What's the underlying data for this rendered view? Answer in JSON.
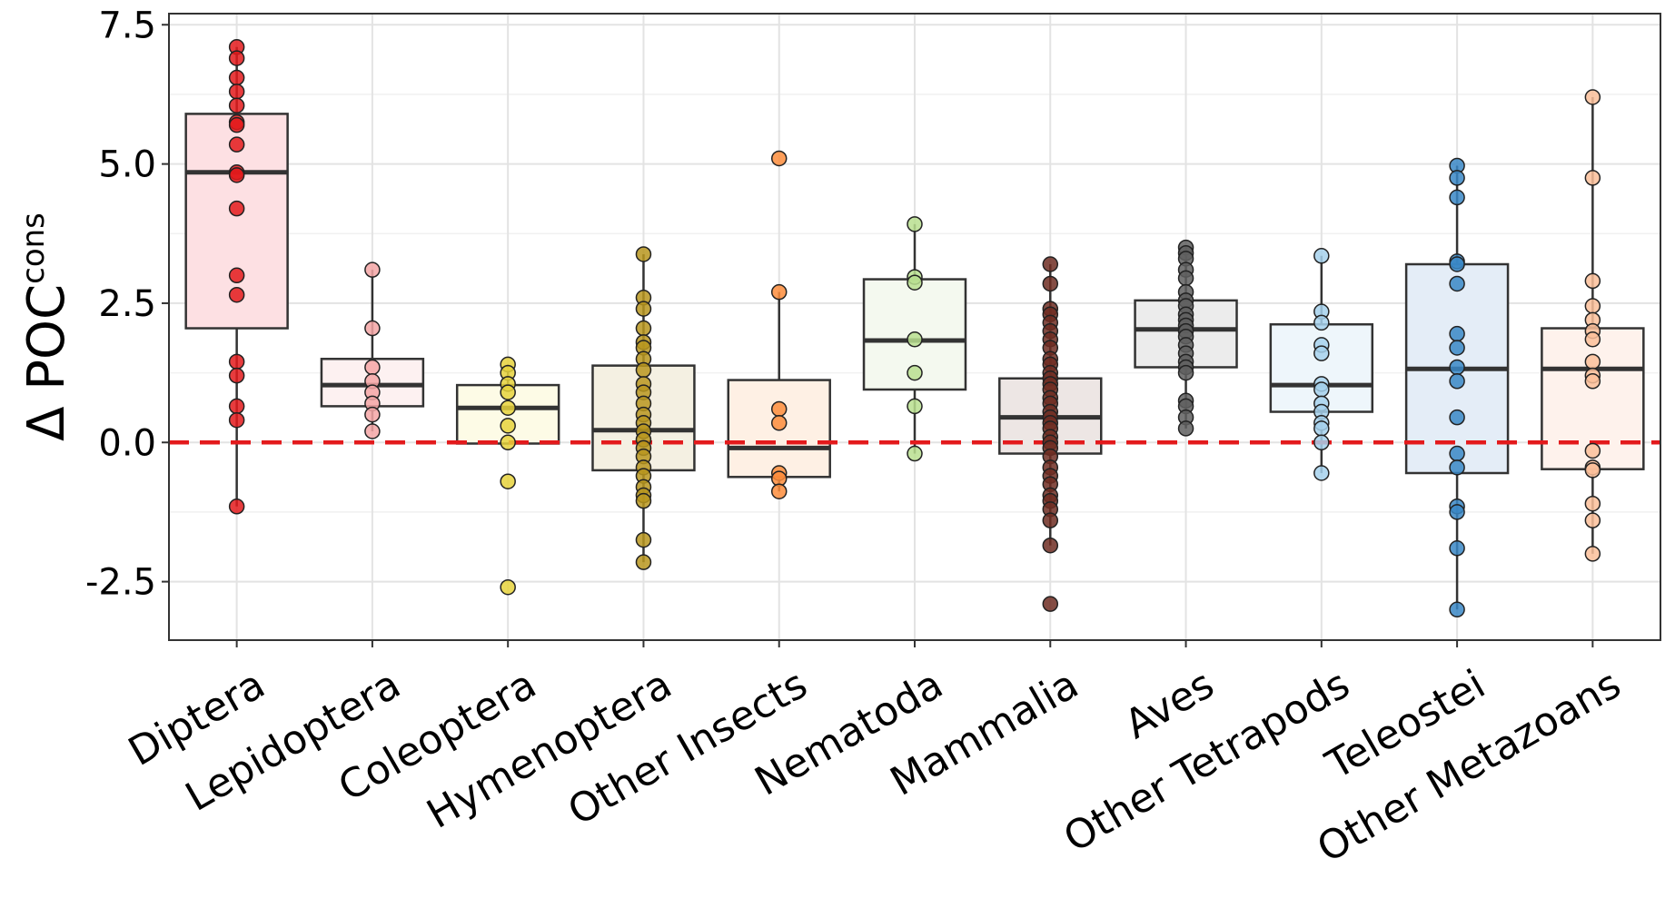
{
  "chart_data": {
    "type": "box",
    "title": "",
    "ylabel": {
      "main": "Δ POC",
      "superscript": "cons"
    },
    "xlabel": "",
    "ylim": [
      -3.55,
      7.7
    ],
    "yticks": [
      -2.5,
      0.0,
      2.5,
      5.0,
      7.5
    ],
    "ytick_labels": [
      "-2.5",
      "0.0",
      "2.5",
      "5.0",
      "7.5"
    ],
    "grid": true,
    "reference_line": {
      "y": 0,
      "style": "dashed",
      "color": "#e31a1c"
    },
    "categories": [
      "Diptera",
      "Lepidoptera",
      "Coleoptera",
      "Hymenoptera",
      "Other Insects",
      "Nematoda",
      "Mammalia",
      "Aves",
      "Other Tetrapods",
      "Teleostei",
      "Other Metazoans"
    ],
    "groups": [
      {
        "category": "Diptera",
        "point_color": "#e31a1c",
        "box_fill": "#fde0e3",
        "box": {
          "q1": 2.05,
          "median": 4.85,
          "q3": 5.9,
          "whisker_low": -1.15,
          "whisker_high": 7.1
        },
        "points": [
          7.1,
          6.9,
          6.55,
          6.3,
          6.05,
          5.75,
          5.7,
          5.35,
          4.85,
          4.8,
          4.2,
          3.0,
          2.65,
          1.45,
          1.2,
          0.65,
          0.4,
          -1.15
        ]
      },
      {
        "category": "Lepidoptera",
        "point_color": "#f4a6a6",
        "box_fill": "#fdf1f1",
        "box": {
          "q1": 0.65,
          "median": 1.03,
          "q3": 1.5,
          "whisker_low": 0.2,
          "whisker_high": 3.1
        },
        "points": [
          3.1,
          2.05,
          1.35,
          1.1,
          0.9,
          0.7,
          0.5,
          0.2
        ]
      },
      {
        "category": "Coleoptera",
        "point_color": "#e6d23c",
        "box_fill": "#fdfbe6",
        "box": {
          "q1": -0.02,
          "median": 0.62,
          "q3": 1.03,
          "whisker_low": -0.02,
          "whisker_high": 1.4
        },
        "points": [
          1.4,
          1.25,
          1.05,
          0.9,
          0.62,
          0.3,
          0.0,
          -0.7,
          -2.6
        ]
      },
      {
        "category": "Hymenoptera",
        "point_color": "#b8961e",
        "box_fill": "#f4f0e2",
        "box": {
          "q1": -0.5,
          "median": 0.22,
          "q3": 1.38,
          "whisker_low": -2.15,
          "whisker_high": 3.38
        },
        "points": [
          3.38,
          2.6,
          2.4,
          2.05,
          1.8,
          1.7,
          1.5,
          1.3,
          1.05,
          0.9,
          0.7,
          0.5,
          0.35,
          0.2,
          0.05,
          -0.1,
          -0.25,
          -0.45,
          -0.6,
          -0.8,
          -0.95,
          -1.05,
          -1.75,
          -2.15
        ]
      },
      {
        "category": "Other Insects",
        "point_color": "#fd8d3c",
        "box_fill": "#fef0e4",
        "box": {
          "q1": -0.62,
          "median": -0.1,
          "q3": 1.12,
          "whisker_low": -0.88,
          "whisker_high": 2.7
        },
        "points": [
          5.1,
          2.7,
          0.6,
          0.35,
          -0.55,
          -0.65,
          -0.88
        ]
      },
      {
        "category": "Nematoda",
        "point_color": "#b8df8f",
        "box_fill": "#f4f9ef",
        "box": {
          "q1": 0.95,
          "median": 1.83,
          "q3": 2.93,
          "whisker_low": -0.2,
          "whisker_high": 3.92
        },
        "points": [
          3.92,
          2.97,
          2.87,
          1.85,
          1.25,
          0.65,
          -0.2
        ]
      },
      {
        "category": "Mammalia",
        "point_color": "#6e2d22",
        "box_fill": "#ede6e4",
        "box": {
          "q1": -0.2,
          "median": 0.45,
          "q3": 1.15,
          "whisker_low": -1.85,
          "whisker_high": 3.2
        },
        "points": [
          3.2,
          2.85,
          2.4,
          2.3,
          2.15,
          2.0,
          1.85,
          1.7,
          1.5,
          1.4,
          1.25,
          1.15,
          1.05,
          0.95,
          0.8,
          0.7,
          0.55,
          0.45,
          0.35,
          0.25,
          0.1,
          0.0,
          -0.1,
          -0.25,
          -0.45,
          -0.6,
          -0.75,
          -0.95,
          -1.05,
          -1.2,
          -1.4,
          -1.85,
          -2.9
        ]
      },
      {
        "category": "Aves",
        "point_color": "#5f5f5f",
        "box_fill": "#ececec",
        "box": {
          "q1": 1.35,
          "median": 2.03,
          "q3": 2.55,
          "whisker_low": 0.25,
          "whisker_high": 3.5
        },
        "points": [
          3.5,
          3.4,
          3.3,
          3.1,
          2.95,
          2.7,
          2.55,
          2.45,
          2.3,
          2.2,
          2.1,
          2.0,
          1.9,
          1.75,
          1.6,
          1.45,
          1.35,
          1.25,
          0.75,
          0.65,
          0.45,
          0.25
        ]
      },
      {
        "category": "Other Tetrapods",
        "point_color": "#a6d1ec",
        "box_fill": "#eef6fb",
        "box": {
          "q1": 0.55,
          "median": 1.03,
          "q3": 2.12,
          "whisker_low": -0.55,
          "whisker_high": 3.35
        },
        "points": [
          3.35,
          2.35,
          2.15,
          1.75,
          1.6,
          1.05,
          0.95,
          0.7,
          0.55,
          0.35,
          0.25,
          0.0,
          -0.55
        ]
      },
      {
        "category": "Teleostei",
        "point_color": "#3a87c6",
        "box_fill": "#e4edf7",
        "box": {
          "q1": -0.55,
          "median": 1.32,
          "q3": 3.2,
          "whisker_low": -3.0,
          "whisker_high": 4.97
        },
        "points": [
          4.97,
          4.75,
          4.4,
          3.25,
          3.2,
          2.85,
          1.95,
          1.7,
          1.35,
          1.1,
          0.45,
          -0.2,
          -0.45,
          -1.15,
          -1.25,
          -1.9,
          -3.0
        ]
      },
      {
        "category": "Other Metazoans",
        "point_color": "#fbbf9a",
        "box_fill": "#fef2ec",
        "box": {
          "q1": -0.48,
          "median": 1.32,
          "q3": 2.05,
          "whisker_low": -2.0,
          "whisker_high": 6.2
        },
        "points": [
          6.2,
          4.75,
          2.9,
          2.45,
          2.2,
          2.0,
          1.85,
          1.45,
          1.2,
          1.1,
          -0.15,
          -0.45,
          -0.5,
          -1.1,
          -1.4,
          -2.0
        ]
      }
    ]
  }
}
